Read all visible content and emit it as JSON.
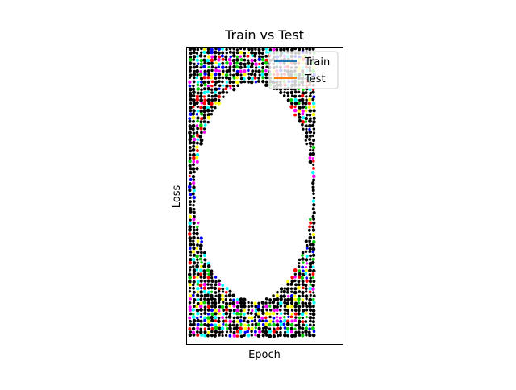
{
  "chart_data": {
    "type": "line",
    "title": "Train vs Test",
    "xlabel": "Epoch",
    "ylabel": "Loss",
    "ticks_visible": false,
    "grid": false,
    "legend": {
      "placement": "top-right"
    },
    "series": [
      {
        "name": "Train",
        "color": "#1f77b4"
      },
      {
        "name": "Test",
        "color": "#ff7f0e"
      }
    ],
    "marker_colors": [
      "#000000",
      "#ff0000",
      "#00cc00",
      "#0000ff",
      "#ff00ff",
      "#00ffff",
      "#ffff00"
    ]
  }
}
